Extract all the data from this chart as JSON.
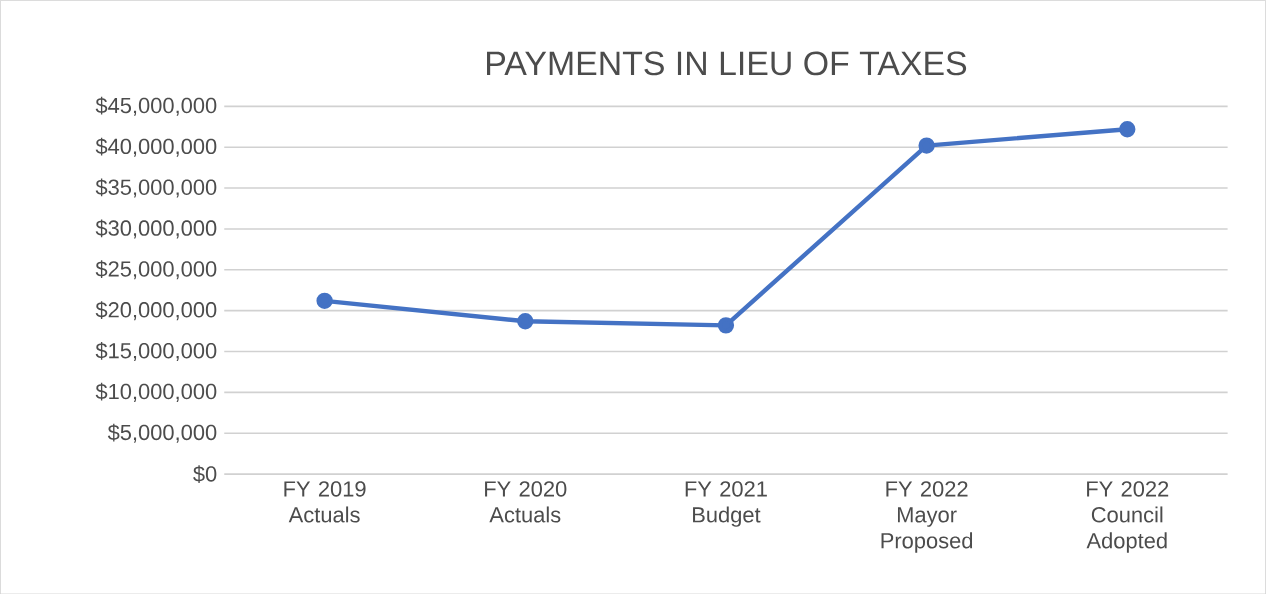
{
  "chart_data": {
    "type": "line",
    "title": "PAYMENTS IN LIEU OF TAXES",
    "categories": [
      "FY 2019 Actuals",
      "FY 2020 Actuals",
      "FY 2021 Budget",
      "FY 2022 Mayor Proposed",
      "FY 2022 Council Adopted"
    ],
    "values": [
      21200000,
      18700000,
      18200000,
      40200000,
      42200000
    ],
    "color": "#4472c4",
    "marker": "circle",
    "line_style": "solid",
    "ylim": [
      0,
      45000000
    ],
    "yticks": [
      {
        "value": 0,
        "label": "$0"
      },
      {
        "value": 5000000,
        "label": "$5,000,000"
      },
      {
        "value": 10000000,
        "label": "$10,000,000"
      },
      {
        "value": 15000000,
        "label": "$15,000,000"
      },
      {
        "value": 20000000,
        "label": "$20,000,000"
      },
      {
        "value": 25000000,
        "label": "$25,000,000"
      },
      {
        "value": 30000000,
        "label": "$30,000,000"
      },
      {
        "value": 35000000,
        "label": "$35,000,000"
      },
      {
        "value": 40000000,
        "label": "$40,000,000"
      },
      {
        "value": 45000000,
        "label": "$45,000,000"
      }
    ],
    "grid": "y"
  }
}
